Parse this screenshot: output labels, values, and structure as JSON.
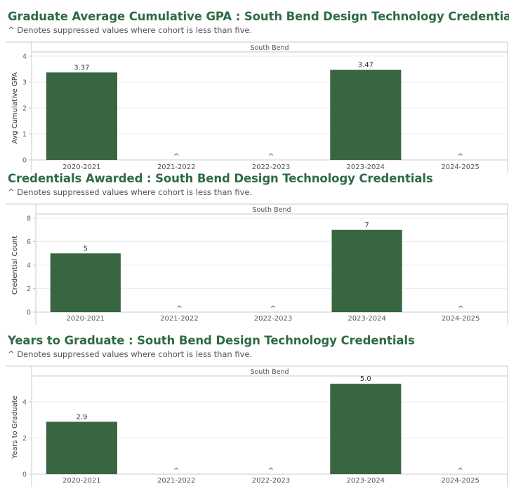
{
  "colors": {
    "bar": "#386641",
    "title": "#2e6b45",
    "axis": "#c8c8c8",
    "grid": "#ececec"
  },
  "panel_label": "South Bend",
  "charts": [
    {
      "title": "Graduate Average Cumulative GPA : South Bend Design Technology Credentials",
      "subtitle": "^ Denotes suppressed values where cohort is less than five."
    },
    {
      "title": "Credentials Awarded : South Bend Design Technology Credentials",
      "subtitle": "^ Denotes suppressed values where cohort is less than five."
    },
    {
      "title": "Years to Graduate : South Bend Design Technology Credentials",
      "subtitle": "^ Denotes suppressed values where cohort is less than five."
    }
  ],
  "chart_data": [
    {
      "type": "bar",
      "title": "Graduate Average Cumulative GPA : South Bend Design Technology Credentials",
      "panel": "South Bend",
      "categories": [
        "2020-2021",
        "2021-2022",
        "2022-2023",
        "2023-2024",
        "2024-2025"
      ],
      "values": [
        3.37,
        null,
        null,
        3.47,
        null
      ],
      "labels": [
        "3.37",
        "^",
        "^",
        "3.47",
        "^"
      ],
      "ylabel": "Avg Cumulative GPA",
      "ylim": [
        0,
        4
      ],
      "yticks": [
        0,
        1,
        2,
        3,
        4
      ],
      "grid": true
    },
    {
      "type": "bar",
      "title": "Credentials Awarded : South Bend Design Technology Credentials",
      "panel": "South Bend",
      "categories": [
        "2020-2021",
        "2021-2022",
        "2022-2023",
        "2023-2024",
        "2024-2025"
      ],
      "values": [
        5,
        null,
        null,
        7,
        null
      ],
      "labels": [
        "5",
        "^",
        "^",
        "7",
        "^"
      ],
      "ylabel": "Credential Count",
      "ylim": [
        0,
        8
      ],
      "yticks": [
        0,
        2,
        4,
        6,
        8
      ],
      "grid": true
    },
    {
      "type": "bar",
      "title": "Years to Graduate : South Bend Design Technology Credentials",
      "panel": "South Bend",
      "categories": [
        "2020-2021",
        "2021-2022",
        "2022-2023",
        "2023-2024",
        "2024-2025"
      ],
      "values": [
        2.9,
        null,
        null,
        5.0,
        null
      ],
      "labels": [
        "2.9",
        "^",
        "^",
        "5.0",
        "^"
      ],
      "ylabel": "Years to Graduate",
      "ylim": [
        0,
        5.2
      ],
      "yticks": [
        0,
        2,
        4
      ],
      "grid": true
    }
  ]
}
